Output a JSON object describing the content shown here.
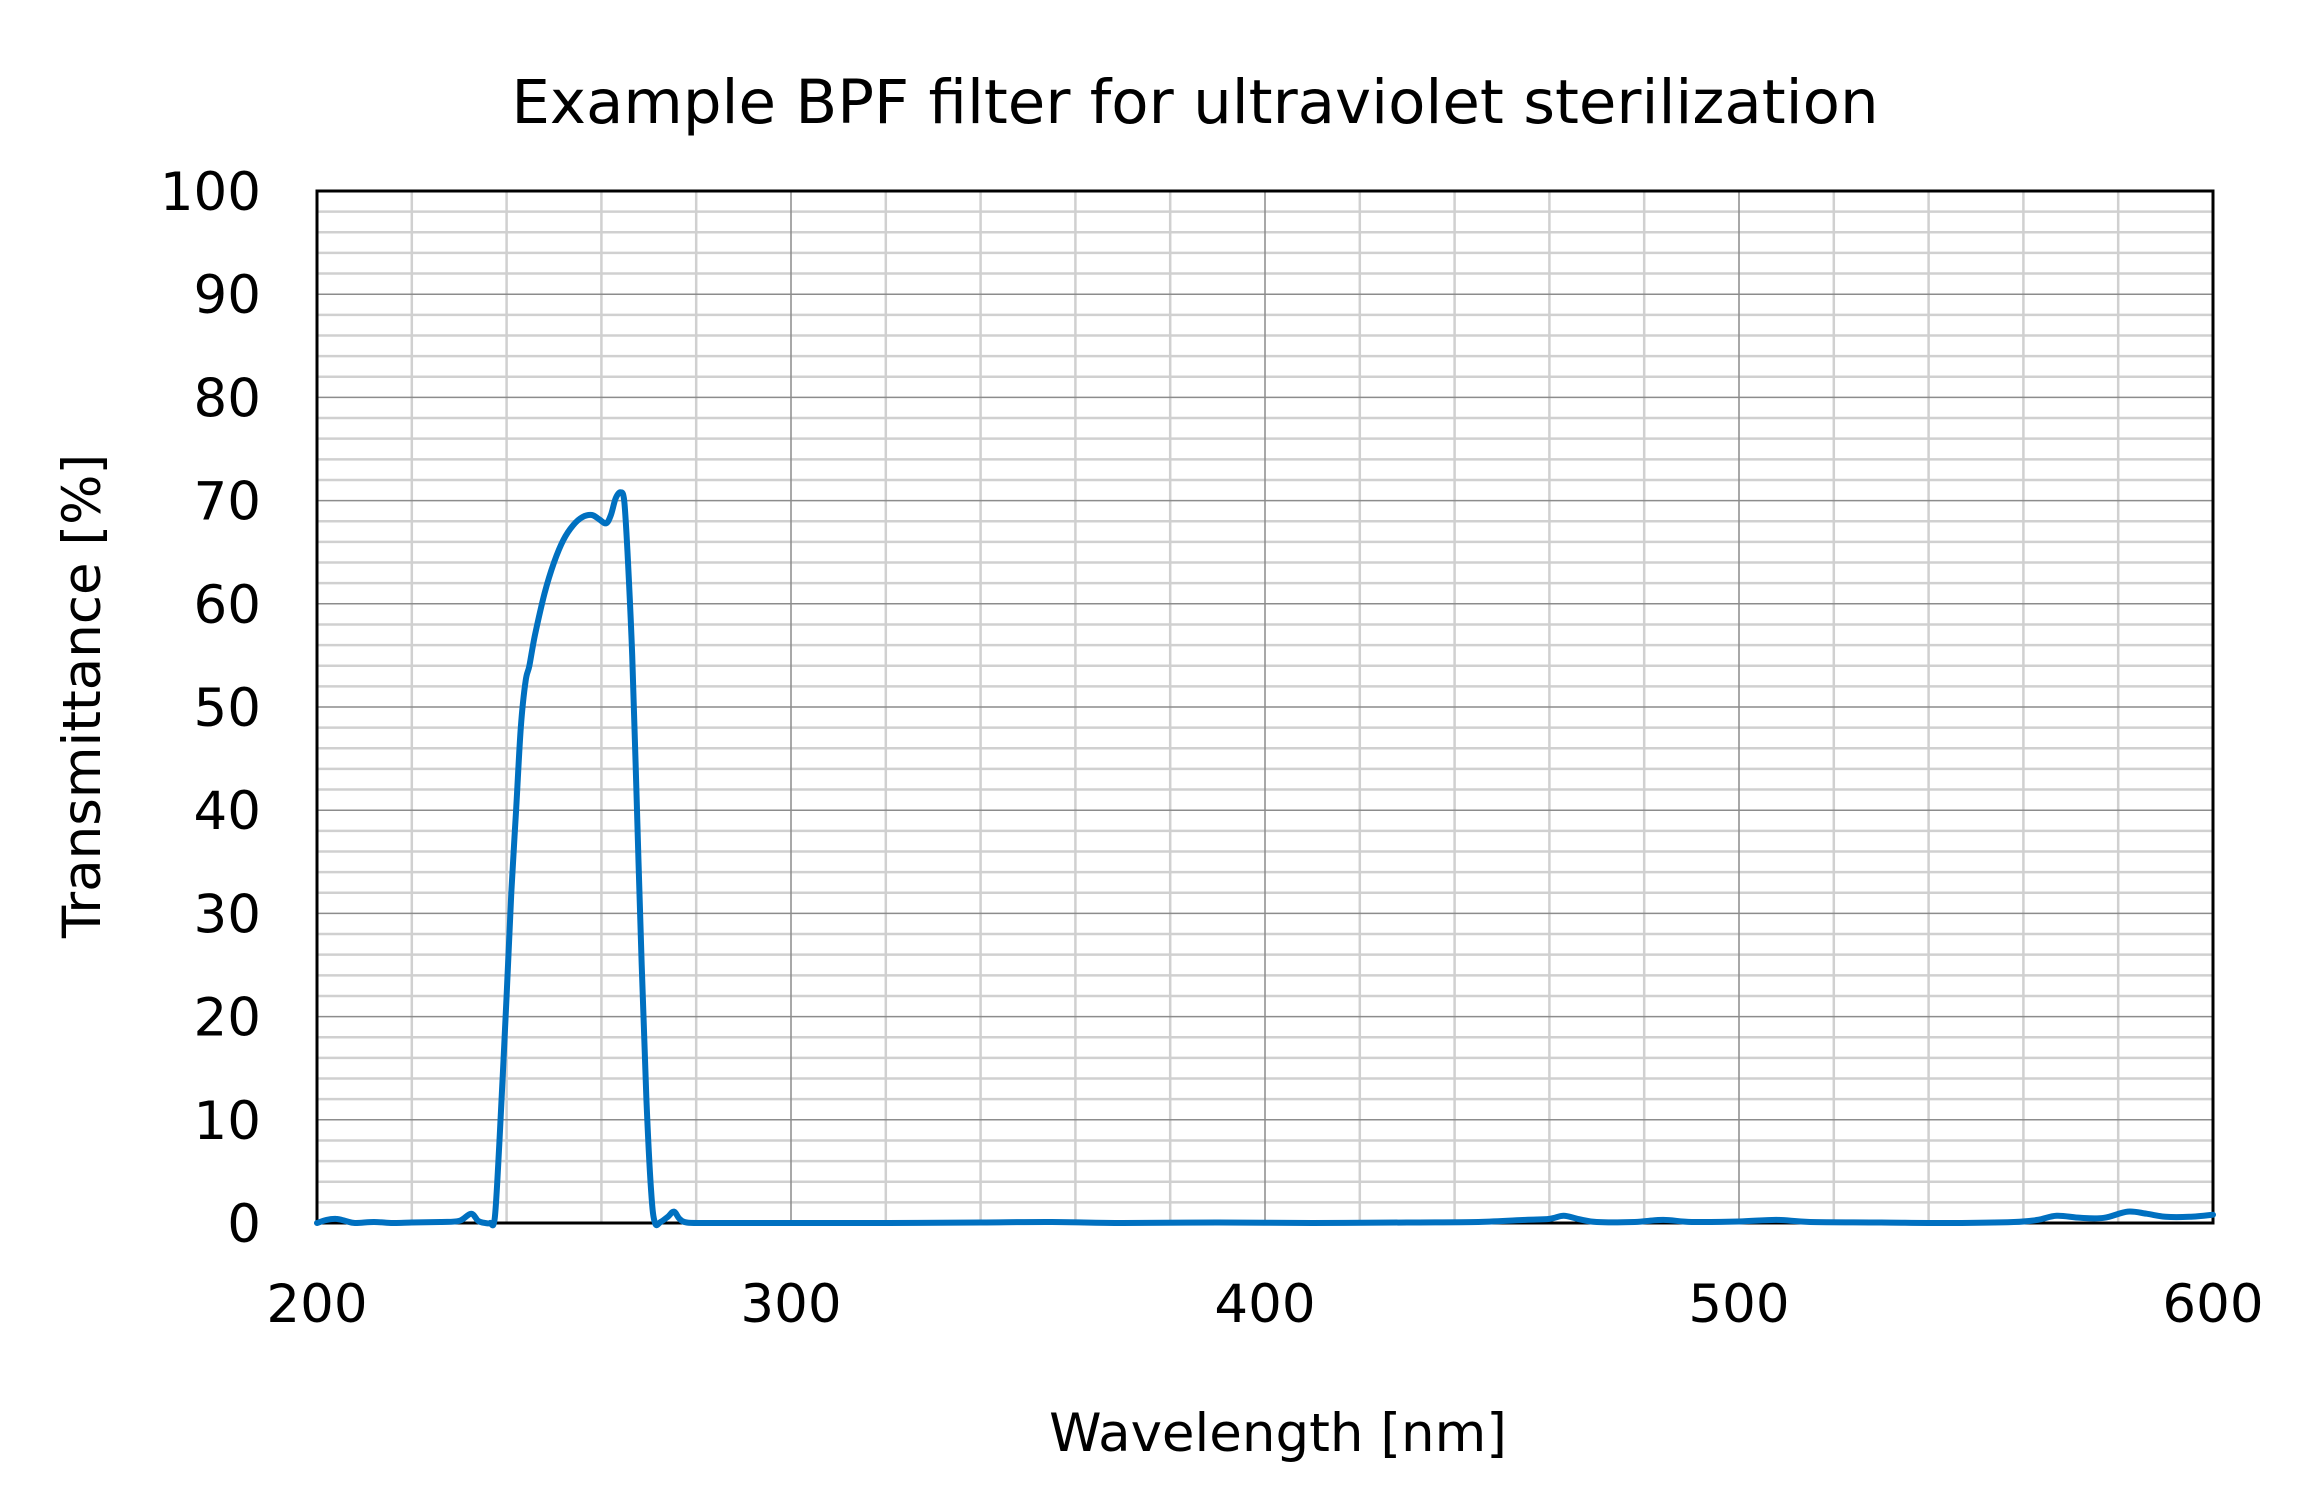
{
  "chart_data": {
    "type": "line",
    "title": "Example BPF filter for ultraviolet sterilization",
    "xlabel": "Wavelength [nm]",
    "ylabel": "Transmittance [%]",
    "xlim": [
      200,
      600
    ],
    "ylim": [
      0,
      100
    ],
    "xticks": [
      200,
      300,
      400,
      500,
      600
    ],
    "yticks": [
      0,
      10,
      20,
      30,
      40,
      50,
      60,
      70,
      80,
      90,
      100
    ],
    "grid": {
      "major_x_step": 100,
      "minor_x_step": 20,
      "major_y_step": 10,
      "minor_y_step": 2,
      "on": true
    },
    "legend": null,
    "series": [
      {
        "name": "Transmittance",
        "color": "#0070C0",
        "x": [
          200,
          202,
          204,
          206,
          208,
          212,
          216,
          220,
          226,
          230,
          232.5,
          234,
          235.5,
          236.5,
          237.5,
          238.5,
          240,
          241,
          242,
          243,
          244,
          244.8,
          246,
          248,
          250,
          252,
          254,
          256,
          258,
          259.5,
          261,
          262,
          263,
          264,
          264.8,
          265.5,
          266.5,
          267.5,
          268.5,
          269.5,
          270.5,
          271.3,
          272.5,
          274,
          275.3,
          276.5,
          278,
          282,
          290,
          300,
          320,
          340,
          355,
          370,
          390,
          410,
          430,
          445,
          455,
          460,
          463,
          466,
          470,
          478,
          484,
          490,
          500,
          508,
          515,
          530,
          545,
          558,
          563,
          567,
          572,
          577,
          582,
          586,
          590,
          595,
          600
        ],
        "y": [
          0,
          0.3,
          0.4,
          0.2,
          0.0,
          0.1,
          0.0,
          0.05,
          0.1,
          0.2,
          0.9,
          0.2,
          0.0,
          0.0,
          0.5,
          8,
          22,
          32,
          40,
          48,
          52.5,
          54,
          57,
          61,
          64,
          66.2,
          67.6,
          68.4,
          68.6,
          68.2,
          67.8,
          68.6,
          70.2,
          70.8,
          70,
          65,
          55,
          40,
          25,
          12,
          3,
          0,
          0.1,
          0.6,
          1.1,
          0.4,
          0.05,
          0,
          0,
          0,
          0,
          0.05,
          0.1,
          0,
          0.05,
          0,
          0.05,
          0.1,
          0.3,
          0.4,
          0.7,
          0.4,
          0.1,
          0.1,
          0.3,
          0.1,
          0.15,
          0.3,
          0.1,
          0.05,
          0,
          0.1,
          0.3,
          0.7,
          0.5,
          0.5,
          1.1,
          0.9,
          0.6,
          0.6,
          0.8
        ]
      }
    ]
  }
}
